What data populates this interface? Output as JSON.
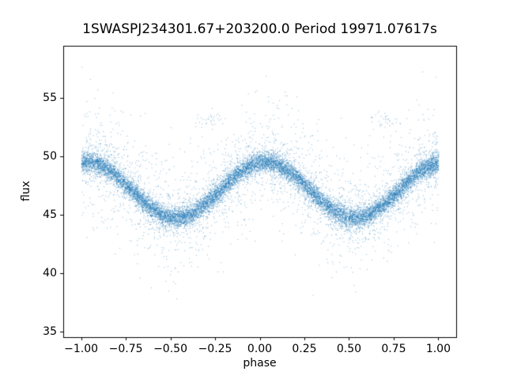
{
  "chart_data": {
    "type": "scatter",
    "title": "1SWASPJ234301.67+203200.0 Period 19971.07617s",
    "xlabel": "phase",
    "ylabel": "flux",
    "xlim": [
      -1.1,
      1.1
    ],
    "ylim": [
      34.5,
      59.5
    ],
    "xticks": [
      {
        "v": -1.0,
        "label": "−1.00"
      },
      {
        "v": -0.75,
        "label": "−0.75"
      },
      {
        "v": -0.5,
        "label": "−0.50"
      },
      {
        "v": -0.25,
        "label": "−0.25"
      },
      {
        "v": 0.0,
        "label": "0.00"
      },
      {
        "v": 0.25,
        "label": "0.25"
      },
      {
        "v": 0.5,
        "label": "0.50"
      },
      {
        "v": 0.75,
        "label": "0.75"
      },
      {
        "v": 1.0,
        "label": "1.00"
      }
    ],
    "yticks": [
      {
        "v": 35,
        "label": "35"
      },
      {
        "v": 40,
        "label": "40"
      },
      {
        "v": 45,
        "label": "45"
      },
      {
        "v": 50,
        "label": "50"
      },
      {
        "v": 55,
        "label": "55"
      }
    ],
    "marker_color": "#1f77b4",
    "marker_alpha": 0.55,
    "grid": false,
    "legend": null,
    "model": {
      "description": "phase-folded sinusoidal light curve, plotted twice over phase -1..1",
      "mean_flux": 47.15,
      "amplitude": 2.4,
      "phase_of_maximum": 0.03,
      "period_in_phase": 1.0,
      "band_noise_sigma_core": 0.42,
      "band_noise_sigma_mid": 1.0,
      "band_noise_sigma_tail": 2.4,
      "band_mix": [
        0.78,
        0.15,
        0.07
      ],
      "n_band_points": 15000,
      "n_outliers_above": 300,
      "n_outliers_below": 220,
      "flux_max": 58.4,
      "flux_min": 36.0,
      "outlier_clumps": [
        {
          "phase": -0.29,
          "flux": 53.2,
          "n": 35,
          "sx": 0.045,
          "sy": 0.35
        },
        {
          "phase": 0.71,
          "flux": 53.2,
          "n": 35,
          "sx": 0.045,
          "sy": 0.35
        }
      ],
      "mean_curve": [
        {
          "phase": -1.0,
          "flux": 49.51
        },
        {
          "phase": -0.75,
          "flux": 47.6
        },
        {
          "phase": -0.5,
          "flux": 44.79
        },
        {
          "phase": -0.25,
          "flux": 46.7
        },
        {
          "phase": 0.0,
          "flux": 49.51
        },
        {
          "phase": 0.25,
          "flux": 47.6
        },
        {
          "phase": 0.5,
          "flux": 44.79
        },
        {
          "phase": 0.75,
          "flux": 46.7
        },
        {
          "phase": 1.0,
          "flux": 49.51
        }
      ],
      "random_seed": 20971
    }
  }
}
